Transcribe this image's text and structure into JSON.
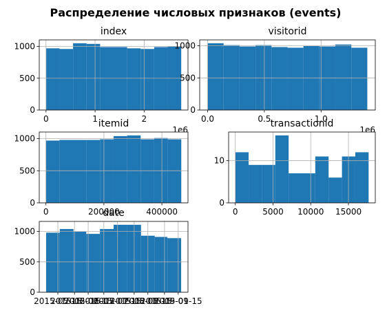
{
  "title": "Распределение числовых признаков (events)",
  "chart_data": [
    {
      "type": "histogram",
      "title": "index",
      "color": "#1f77b4",
      "grid": true,
      "bins": [
        0,
        275610,
        551220,
        826830,
        1102440,
        1378050,
        1653660,
        1929270,
        2204880,
        2480490,
        2756100
      ],
      "values": [
        970,
        960,
        1050,
        1040,
        990,
        990,
        970,
        960,
        990,
        1000
      ],
      "xlim": [
        -138000,
        2894000
      ],
      "ylim": [
        0,
        1103
      ],
      "xticks": [
        0,
        {
          "value": 1000000,
          "label": "1"
        },
        {
          "value": 2000000,
          "label": "2"
        }
      ],
      "offset_text": "1e6",
      "yticks": [
        0,
        500,
        1000
      ]
    },
    {
      "type": "histogram",
      "title": "visitorid",
      "color": "#1f77b4",
      "grid": true,
      "bins": [
        0,
        140758,
        281516,
        422274,
        563032,
        703790,
        844548,
        985306,
        1126064,
        1266822,
        1407580
      ],
      "values": [
        1040,
        1010,
        990,
        1010,
        980,
        970,
        1000,
        990,
        1020,
        970
      ],
      "xlim": [
        -70000,
        1478000
      ],
      "ylim": [
        0,
        1092
      ],
      "xticks": [
        {
          "value": 0,
          "label": "0.0"
        },
        {
          "value": 500000,
          "label": "0.5"
        },
        {
          "value": 1000000,
          "label": "1.0"
        }
      ],
      "offset_text": "1e6",
      "yticks": [
        0,
        500,
        1000
      ]
    },
    {
      "type": "histogram",
      "title": "itemid",
      "color": "#1f77b4",
      "grid": true,
      "bins": [
        0,
        46687,
        93373,
        140060,
        186747,
        233434,
        280120,
        326807,
        373494,
        420180,
        466867
      ],
      "values": [
        970,
        980,
        980,
        980,
        990,
        1040,
        1050,
        990,
        1010,
        990
      ],
      "xlim": [
        -23000,
        490000
      ],
      "ylim": [
        0,
        1103
      ],
      "xticks": [
        0,
        200000,
        400000
      ],
      "yticks": [
        0,
        500,
        1000
      ]
    },
    {
      "type": "histogram",
      "title": "transactionid",
      "color": "#1f77b4",
      "grid": true,
      "bins": [
        0,
        1767,
        3534,
        5302,
        7069,
        8836,
        10603,
        12370,
        14138,
        15905,
        17672
      ],
      "values": [
        12,
        9,
        9,
        16,
        7,
        7,
        11,
        6,
        11,
        12
      ],
      "xlim": [
        -884,
        18556
      ],
      "ylim": [
        0,
        16.8
      ],
      "xticks": [
        0,
        5000,
        10000,
        15000
      ],
      "yticks": [
        0,
        10
      ]
    },
    {
      "type": "histogram",
      "title": "date",
      "color": "#1f77b4",
      "grid": true,
      "bins": [
        "2015-05-03",
        "2015-05-17",
        "2015-05-31",
        "2015-06-13",
        "2015-06-27",
        "2015-07-11",
        "2015-07-25",
        "2015-08-08",
        "2015-08-22",
        "2015-09-04",
        "2015-09-18"
      ],
      "values": [
        980,
        1040,
        1000,
        960,
        1040,
        1110,
        1110,
        930,
        910,
        890
      ],
      "xlim": [
        "2015-04-26",
        "2015-09-25"
      ],
      "ylim": [
        0,
        1165
      ],
      "xticks": [
        "2015-05-15",
        "2015-06-01",
        "2015-06-15",
        "2015-07-01",
        "2015-07-15",
        "2015-08-01",
        "2015-08-15",
        "2015-09-01",
        "2015-09-15"
      ],
      "yticks": [
        0,
        500,
        1000
      ]
    }
  ]
}
